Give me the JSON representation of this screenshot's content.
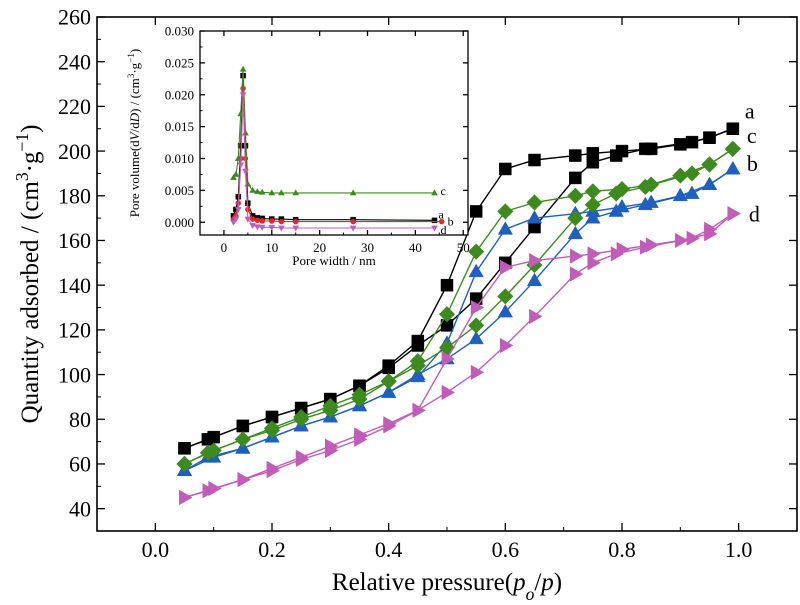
{
  "colors": {
    "a": "#000000",
    "b": "#1f5fbf",
    "c": "#3d8a1f",
    "d": "#c15cb8",
    "inset_b": "#e8242b"
  },
  "chart_data": [
    {
      "type": "scatter",
      "title": "",
      "xlabel_parts": [
        "Relative pressure(",
        "p",
        "o",
        "/",
        "p",
        ")"
      ],
      "ylabel_parts": [
        "Quantity adsorbed / (cm",
        "3",
        "·g",
        "−1",
        ")"
      ],
      "xlim": [
        -0.1,
        1.1
      ],
      "ylim": [
        30,
        260
      ],
      "xticks": [
        0.0,
        0.2,
        0.4,
        0.6,
        0.8,
        1.0
      ],
      "xtick_labels": [
        "0.0",
        "0.2",
        "0.4",
        "0.6",
        "0.8",
        "1.0"
      ],
      "yticks": [
        40,
        60,
        80,
        100,
        120,
        140,
        160,
        180,
        200,
        220,
        240,
        260
      ],
      "ytick_labels": [
        "40",
        "60",
        "80",
        "100",
        "120",
        "140",
        "160",
        "180",
        "200",
        "220",
        "240",
        "260"
      ],
      "grid": false,
      "series": [
        {
          "name": "a",
          "marker": "square",
          "adsorption": {
            "x": [
              0.05,
              0.09,
              0.15,
              0.2,
              0.25,
              0.3,
              0.35,
              0.4,
              0.45,
              0.5,
              0.55,
              0.6,
              0.65,
              0.72,
              0.75,
              0.8,
              0.85,
              0.9,
              0.95,
              0.99
            ],
            "y": [
              67,
              71,
              77,
              81,
              85,
              89,
              95,
              104,
              115,
              140,
              173,
              192,
              196,
              198,
              199,
              200,
              201,
              203,
              206,
              210
            ]
          },
          "desorption": {
            "x": [
              0.99,
              0.95,
              0.92,
              0.84,
              0.79,
              0.75,
              0.72,
              0.65,
              0.6,
              0.55,
              0.5,
              0.45,
              0.4,
              0.35,
              0.3,
              0.25,
              0.2,
              0.15,
              0.1,
              0.05
            ],
            "y": [
              210,
              206,
              204,
              201,
              198,
              195,
              188,
              166,
              150,
              134,
              122,
              113,
              103,
              95,
              89,
              85,
              81,
              77,
              72,
              67
            ]
          }
        },
        {
          "name": "b",
          "marker": "triangle-up",
          "adsorption": {
            "x": [
              0.05,
              0.09,
              0.15,
              0.2,
              0.25,
              0.3,
              0.35,
              0.4,
              0.45,
              0.5,
              0.55,
              0.6,
              0.65,
              0.72,
              0.75,
              0.8,
              0.85,
              0.9,
              0.95,
              0.99
            ],
            "y": [
              57,
              63,
              67,
              72,
              77,
              81,
              86,
              92,
              99,
              114,
              146,
              165,
              170,
              172,
              173,
              175,
              177,
              180,
              185,
              192
            ]
          },
          "desorption": {
            "x": [
              0.99,
              0.95,
              0.92,
              0.84,
              0.79,
              0.75,
              0.72,
              0.65,
              0.6,
              0.55,
              0.5,
              0.45,
              0.4,
              0.35,
              0.3,
              0.25,
              0.2,
              0.15,
              0.1,
              0.05
            ],
            "y": [
              192,
              185,
              181,
              176,
              173,
              170,
              163,
              142,
              128,
              116,
              107,
              100,
              92,
              86,
              81,
              77,
              72,
              67,
              63,
              57
            ]
          }
        },
        {
          "name": "c",
          "marker": "diamond",
          "adsorption": {
            "x": [
              0.05,
              0.09,
              0.15,
              0.2,
              0.25,
              0.3,
              0.35,
              0.4,
              0.45,
              0.5,
              0.55,
              0.6,
              0.65,
              0.72,
              0.75,
              0.8,
              0.85,
              0.9,
              0.95,
              0.99
            ],
            "y": [
              60,
              65,
              71,
              75,
              80,
              84,
              89,
              97,
              106,
              127,
              155,
              173,
              177,
              180,
              182,
              183,
              185,
              189,
              194,
              201
            ]
          },
          "desorption": {
            "x": [
              0.99,
              0.95,
              0.92,
              0.84,
              0.79,
              0.75,
              0.72,
              0.65,
              0.6,
              0.55,
              0.5,
              0.45,
              0.4,
              0.35,
              0.3,
              0.25,
              0.2,
              0.15,
              0.1,
              0.05
            ],
            "y": [
              201,
              194,
              190,
              184,
              181,
              176,
              170,
              149,
              135,
              122,
              112,
              104,
              97,
              91,
              86,
              81,
              76,
              71,
              66,
              60
            ]
          }
        },
        {
          "name": "d",
          "marker": "triangle-right",
          "adsorption": {
            "x": [
              0.05,
              0.09,
              0.15,
              0.2,
              0.25,
              0.3,
              0.35,
              0.4,
              0.45,
              0.5,
              0.55,
              0.6,
              0.65,
              0.72,
              0.75,
              0.8,
              0.85,
              0.9,
              0.95,
              0.99
            ],
            "y": [
              45,
              48,
              53,
              57,
              62,
              66,
              71,
              77,
              84,
              107,
              130,
              148,
              151,
              153,
              154,
              156,
              158,
              160,
              163,
              172
            ]
          },
          "desorption": {
            "x": [
              0.99,
              0.95,
              0.92,
              0.84,
              0.79,
              0.75,
              0.72,
              0.65,
              0.6,
              0.55,
              0.5,
              0.45,
              0.4,
              0.35,
              0.3,
              0.25,
              0.2,
              0.15,
              0.1,
              0.05
            ],
            "y": [
              172,
              165,
              161,
              157,
              154,
              150,
              145,
              126,
              113,
              101,
              92,
              84,
              78,
              73,
              68,
              63,
              58,
              53,
              49,
              45
            ]
          }
        }
      ]
    },
    {
      "type": "line",
      "title": "",
      "xlabel": "Pore width / nm",
      "ylabel_parts": [
        "Pore volume(d",
        "V",
        "/d",
        "D",
        ") / (cm",
        "3",
        "·g",
        "−1",
        ")"
      ],
      "xlim": [
        -5,
        51
      ],
      "ylim": [
        -0.002,
        0.03
      ],
      "xticks": [
        0,
        10,
        20,
        30,
        40,
        50
      ],
      "xtick_labels": [
        "0",
        "10",
        "20",
        "30",
        "40",
        "50"
      ],
      "yticks": [
        0.0,
        0.005,
        0.01,
        0.015,
        0.02,
        0.025,
        0.03
      ],
      "ytick_labels": [
        "0.000",
        "0.005",
        "0.010",
        "0.015",
        "0.020",
        "0.025",
        "0.030"
      ],
      "grid": false,
      "series": [
        {
          "name": "a",
          "marker": "square",
          "x": [
            2.0,
            2.5,
            3.0,
            3.5,
            4.0,
            4.5,
            5.0,
            6.0,
            7.0,
            8.0,
            10.0,
            12.0,
            15.0,
            27.0,
            44.0
          ],
          "y": [
            0.001,
            0.002,
            0.004,
            0.012,
            0.023,
            0.012,
            0.003,
            0.001,
            0.0007,
            0.0006,
            0.0005,
            0.0005,
            0.0004,
            0.0004,
            0.0003
          ]
        },
        {
          "name": "b",
          "marker": "circle",
          "x": [
            2.0,
            2.5,
            3.0,
            3.5,
            4.0,
            4.5,
            5.0,
            6.0,
            7.0,
            8.0,
            10.0,
            12.0,
            15.0,
            27.0,
            45.5
          ],
          "y": [
            0.0005,
            0.001,
            0.003,
            0.01,
            0.021,
            0.01,
            0.002,
            0.0005,
            0.0003,
            0.0002,
            0.0002,
            0.0001,
            0.0001,
            0.0001,
            0.0001
          ]
        },
        {
          "name": "c",
          "marker": "triangle-up",
          "x": [
            2.0,
            2.5,
            3.0,
            3.5,
            4.0,
            4.5,
            5.0,
            6.0,
            7.0,
            8.0,
            10.0,
            12.0,
            15.0,
            27.0,
            44.0
          ],
          "y": [
            0.007,
            0.0075,
            0.01,
            0.017,
            0.024,
            0.014,
            0.006,
            0.005,
            0.0048,
            0.0047,
            0.0046,
            0.0046,
            0.0046,
            0.0046,
            0.0046
          ]
        },
        {
          "name": "d",
          "marker": "triangle-down",
          "x": [
            2.0,
            2.5,
            3.0,
            3.5,
            4.0,
            4.5,
            5.0,
            6.0,
            7.0,
            8.0,
            10.0,
            12.0,
            15.0,
            27.0,
            44.0
          ],
          "y": [
            0.0,
            0.0005,
            0.002,
            0.009,
            0.02,
            0.008,
            0.0005,
            -0.0005,
            -0.0007,
            -0.0008,
            -0.0008,
            -0.0009,
            -0.0009,
            -0.0009,
            -0.0009
          ]
        }
      ]
    }
  ]
}
